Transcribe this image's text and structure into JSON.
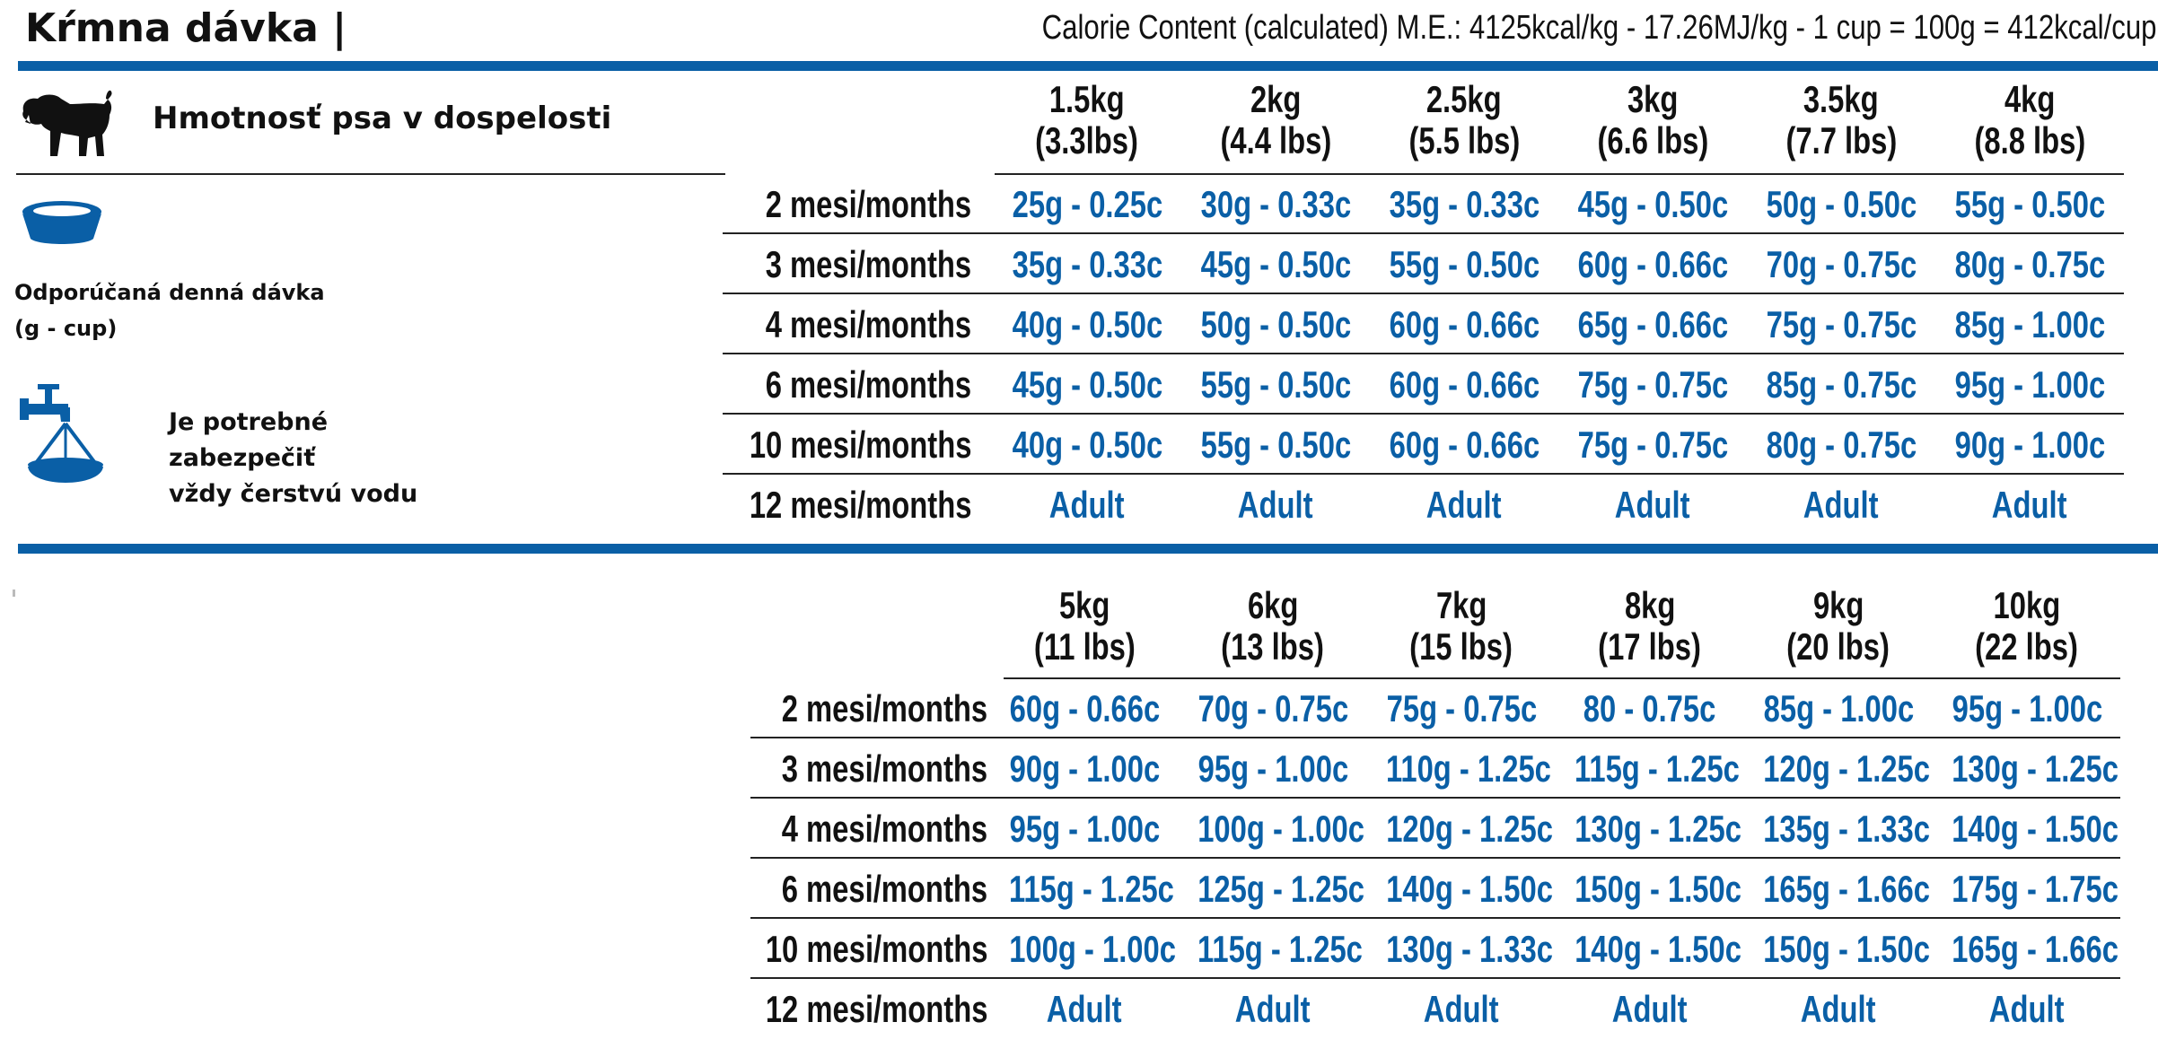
{
  "header": {
    "title": "Kŕmna dávka |",
    "calorie_content": "Calorie Content (calculated) M.E.: 4125kcal/kg - 17.26MJ/kg - 1 cup = 100g = 412kcal/cup"
  },
  "sidebar": {
    "weight_label": "Hmotnosť psa v dospelosti",
    "ration_label_line1": "Odporúčaná denná dávka",
    "ration_label_line2": "(g - cup)",
    "water_line1": "Je potrebné",
    "water_line2": "zabezpečiť",
    "water_line3": "vždy čerstvú vodu",
    "icons": [
      "dog-icon",
      "bowl-icon",
      "water-tap-icon"
    ],
    "icon_color": "#0a5fa6"
  },
  "colors": {
    "accent": "#0a5fa6",
    "text": "#111111"
  },
  "tables": [
    {
      "weights": [
        {
          "kg": "1.5kg",
          "lbs": "(3.3lbs)"
        },
        {
          "kg": "2kg",
          "lbs": "(4.4 lbs)"
        },
        {
          "kg": "2.5kg",
          "lbs": "(5.5 lbs)"
        },
        {
          "kg": "3kg",
          "lbs": "(6.6 lbs)"
        },
        {
          "kg": "3.5kg",
          "lbs": "(7.7 lbs)"
        },
        {
          "kg": "4kg",
          "lbs": "(8.8 lbs)"
        }
      ],
      "rows": [
        {
          "age": "2 mesi/months",
          "values": [
            "25g - 0.25c",
            "30g - 0.33c",
            "35g - 0.33c",
            "45g - 0.50c",
            "50g - 0.50c",
            "55g - 0.50c"
          ]
        },
        {
          "age": "3 mesi/months",
          "values": [
            "35g - 0.33c",
            "45g - 0.50c",
            "55g - 0.50c",
            "60g - 0.66c",
            "70g - 0.75c",
            "80g - 0.75c"
          ]
        },
        {
          "age": "4 mesi/months",
          "values": [
            "40g - 0.50c",
            "50g - 0.50c",
            "60g - 0.66c",
            "65g - 0.66c",
            "75g - 0.75c",
            "85g - 1.00c"
          ]
        },
        {
          "age": "6 mesi/months",
          "values": [
            "45g - 0.50c",
            "55g - 0.50c",
            "60g - 0.66c",
            "75g - 0.75c",
            "85g - 0.75c",
            "95g - 1.00c"
          ]
        },
        {
          "age": "10 mesi/months",
          "values": [
            "40g - 0.50c",
            "55g - 0.50c",
            "60g - 0.66c",
            "75g - 0.75c",
            "80g - 0.75c",
            "90g - 1.00c"
          ]
        },
        {
          "age": "12 mesi/months",
          "values": [
            "Adult",
            "Adult",
            "Adult",
            "Adult",
            "Adult",
            "Adult"
          ]
        }
      ]
    },
    {
      "weights": [
        {
          "kg": "5kg",
          "lbs": "(11 lbs)"
        },
        {
          "kg": "6kg",
          "lbs": "(13 lbs)"
        },
        {
          "kg": "7kg",
          "lbs": "(15 lbs)"
        },
        {
          "kg": "8kg",
          "lbs": "(17 lbs)"
        },
        {
          "kg": "9kg",
          "lbs": "(20 lbs)"
        },
        {
          "kg": "10kg",
          "lbs": "(22 lbs)"
        }
      ],
      "rows": [
        {
          "age": "2 mesi/months",
          "values": [
            "60g - 0.66c",
            "70g - 0.75c",
            "75g - 0.75c",
            "80 - 0.75c",
            "85g - 1.00c",
            "95g - 1.00c"
          ]
        },
        {
          "age": "3 mesi/months",
          "values": [
            "90g - 1.00c",
            "95g - 1.00c",
            "110g - 1.25c",
            "115g - 1.25c",
            "120g - 1.25c",
            "130g - 1.25c"
          ]
        },
        {
          "age": "4 mesi/months",
          "values": [
            "95g - 1.00c",
            "100g - 1.00c",
            "120g - 1.25c",
            "130g - 1.25c",
            "135g - 1.33c",
            "140g - 1.50c"
          ]
        },
        {
          "age": "6 mesi/months",
          "values": [
            "115g - 1.25c",
            "125g - 1.25c",
            "140g - 1.50c",
            "150g - 1.50c",
            "165g - 1.66c",
            "175g - 1.75c"
          ]
        },
        {
          "age": "10 mesi/months",
          "values": [
            "100g - 1.00c",
            "115g - 1.25c",
            "130g - 1.33c",
            "140g - 1.50c",
            "150g - 1.50c",
            "165g - 1.66c"
          ]
        },
        {
          "age": "12 mesi/months",
          "values": [
            "Adult",
            "Adult",
            "Adult",
            "Adult",
            "Adult",
            "Adult"
          ]
        }
      ]
    }
  ]
}
